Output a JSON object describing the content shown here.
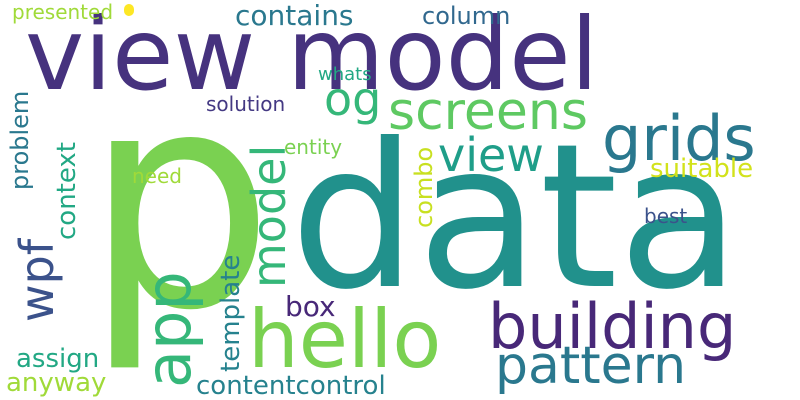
{
  "wordcloud": {
    "words": [
      {
        "key": "p",
        "text": "p",
        "color": "#7ad151"
      },
      {
        "key": "data",
        "text": "data",
        "color": "#21918c"
      },
      {
        "key": "view_model",
        "text": "view model",
        "color": "#46327e"
      },
      {
        "key": "hello",
        "text": "hello",
        "color": "#7ad151"
      },
      {
        "key": "building",
        "text": "building",
        "color": "#482878"
      },
      {
        "key": "grids",
        "text": "grids",
        "color": "#2a788e"
      },
      {
        "key": "screens",
        "text": "screens",
        "color": "#5ec962"
      },
      {
        "key": "pattern",
        "text": "pattern",
        "color": "#2a788e"
      },
      {
        "key": "app",
        "text": "app",
        "color": "#35b779"
      },
      {
        "key": "view",
        "text": "view",
        "color": "#1f9e89"
      },
      {
        "key": "model",
        "text": "model",
        "color": "#35b779"
      },
      {
        "key": "wpf",
        "text": "wpf",
        "color": "#3b528b"
      },
      {
        "key": "og",
        "text": "og",
        "color": "#35b779"
      },
      {
        "key": "contains",
        "text": "contains",
        "color": "#2a788e"
      },
      {
        "key": "column",
        "text": "column",
        "color": "#31688e"
      },
      {
        "key": "suitable",
        "text": "suitable",
        "color": "#d2e21b"
      },
      {
        "key": "contentcontrol",
        "text": "contentcontrol",
        "color": "#26828e"
      },
      {
        "key": "template",
        "text": "template",
        "color": "#26828e"
      },
      {
        "key": "box",
        "text": "box",
        "color": "#482878"
      },
      {
        "key": "combo",
        "text": "combo",
        "color": "#c8e020"
      },
      {
        "key": "context",
        "text": "context",
        "color": "#22a884"
      },
      {
        "key": "problem",
        "text": "problem",
        "color": "#2a788e"
      },
      {
        "key": "assign",
        "text": "assign",
        "color": "#22a884"
      },
      {
        "key": "anyway",
        "text": "anyway",
        "color": "#a0da39"
      },
      {
        "key": "presented",
        "text": "presented",
        "color": "#a0da39"
      },
      {
        "key": "whats",
        "text": "whats",
        "color": "#22a884"
      },
      {
        "key": "solution",
        "text": "solution",
        "color": "#443983"
      },
      {
        "key": "entity",
        "text": "entity",
        "color": "#7ad151"
      },
      {
        "key": "need",
        "text": "need",
        "color": "#a0da39"
      },
      {
        "key": "best",
        "text": "best",
        "color": "#3b528b"
      },
      {
        "key": "dot",
        "text": "",
        "color": "#fde725"
      }
    ]
  }
}
